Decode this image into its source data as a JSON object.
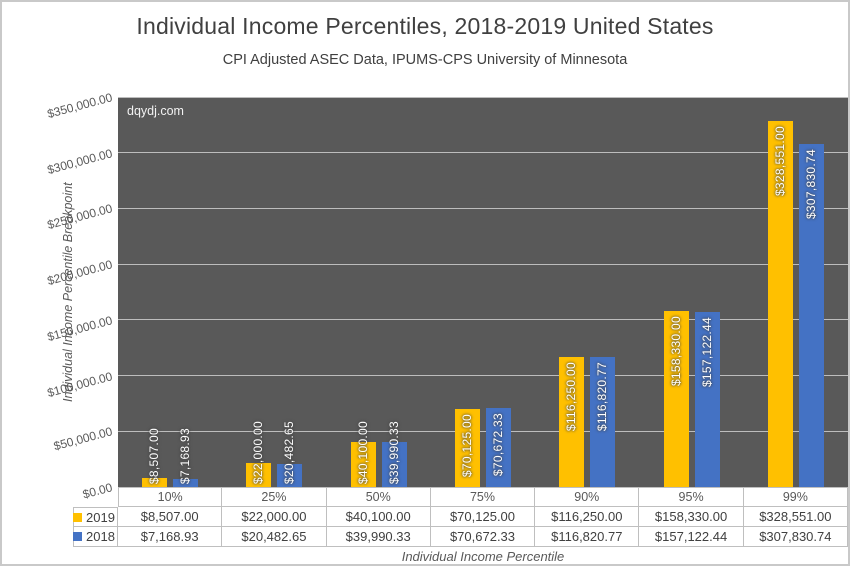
{
  "watermark": "dqydj.com",
  "chart_data": {
    "type": "bar",
    "title": "Individual Income Percentiles, 2018-2019 United States",
    "subtitle": "CPI Adjusted ASEC Data, IPUMS-CPS University of Minnesota",
    "xlabel": "Individual Income Percentile",
    "ylabel": "Individual Income Percentile Breakpoint",
    "categories": [
      "10%",
      "25%",
      "50%",
      "75%",
      "90%",
      "95%",
      "99%"
    ],
    "series": [
      {
        "name": "2019",
        "color": "#FFC000",
        "values": [
          8507.0,
          22000.0,
          40100.0,
          70125.0,
          116250.0,
          158330.0,
          328551.0
        ]
      },
      {
        "name": "2018",
        "color": "#4472C4",
        "values": [
          7168.93,
          20482.65,
          39990.33,
          70672.33,
          116820.77,
          157122.44,
          307830.74
        ]
      }
    ],
    "ylim": [
      0,
      350000
    ],
    "ytick_step": 50000,
    "value_format": "usd_2dp",
    "grid": true,
    "legend_position": "data-table-left",
    "colors": {
      "plot_bg": "#595959",
      "gridline": "#CFCFCF",
      "title_text": "#404040",
      "axis_text": "#595959",
      "table_border": "#BFBFBF",
      "data_label_text": "#FFFFFF"
    }
  }
}
